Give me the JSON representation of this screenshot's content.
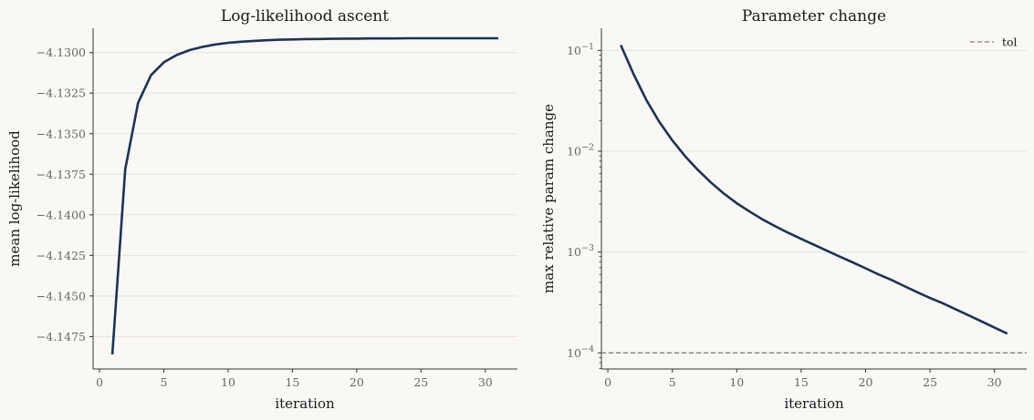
{
  "chart_data": [
    {
      "type": "line",
      "title": "Log-likelihood ascent",
      "xlabel": "iteration",
      "ylabel": "mean log-likelihood",
      "xlim": [
        -0.5,
        32.5
      ],
      "ylim": [
        -4.1495,
        -4.1285
      ],
      "xticks": [
        0,
        5,
        10,
        15,
        20,
        25,
        30
      ],
      "yticks": [
        -4.13,
        -4.1325,
        -4.135,
        -4.1375,
        -4.14,
        -4.1425,
        -4.145,
        -4.1475
      ],
      "xtick_labels": [
        "0",
        "5",
        "10",
        "15",
        "20",
        "25",
        "30"
      ],
      "ytick_labels": [
        "−4.1300",
        "−4.1325",
        "−4.1350",
        "−4.1375",
        "−4.1400",
        "−4.1425",
        "−4.1450",
        "−4.1475"
      ],
      "grid": "y",
      "legend": "none",
      "line_color": "#1c3258",
      "series": [
        {
          "x": [
            1,
            2,
            3,
            4,
            5,
            6,
            7,
            8,
            9,
            10,
            11,
            12,
            13,
            14,
            15,
            16,
            17,
            18,
            19,
            20,
            21,
            22,
            23,
            24,
            25,
            26,
            27,
            28,
            29,
            30,
            31
          ],
          "values": [
            -4.1486,
            -4.1372,
            -4.1331,
            -4.1314,
            -4.1306,
            -4.13015,
            -4.12985,
            -4.12965,
            -4.1295,
            -4.1294,
            -4.12933,
            -4.12928,
            -4.12924,
            -4.12921,
            -4.12919,
            -4.12917,
            -4.12916,
            -4.12915,
            -4.12914,
            -4.12914,
            -4.12913,
            -4.12913,
            -4.12913,
            -4.12912,
            -4.12912,
            -4.12912,
            -4.12912,
            -4.12912,
            -4.12912,
            -4.12912,
            -4.12912
          ]
        }
      ]
    },
    {
      "type": "line",
      "title": "Parameter change",
      "xlabel": "iteration",
      "ylabel": "max relative param change",
      "yscale": "log",
      "xlim": [
        -0.5,
        32.5
      ],
      "ylim_log10": [
        -4.16,
        -0.78
      ],
      "xticks": [
        0,
        5,
        10,
        15,
        20,
        25,
        30
      ],
      "yticks": [
        0.0001,
        0.001,
        0.01,
        0.1
      ],
      "xtick_labels": [
        "0",
        "5",
        "10",
        "15",
        "20",
        "25",
        "30"
      ],
      "ytick_labels": [
        {
          "base": "10",
          "exp": "−4",
          "value": 0.0001
        },
        {
          "base": "10",
          "exp": "−3",
          "value": 0.001
        },
        {
          "base": "10",
          "exp": "−2",
          "value": 0.01
        },
        {
          "base": "10",
          "exp": "−1",
          "value": 0.1
        }
      ],
      "grid": "y",
      "legend": "top-right",
      "line_color": "#1c3258",
      "ref_color": "#808080",
      "series": [
        {
          "x": [
            1,
            2,
            3,
            4,
            5,
            6,
            7,
            8,
            9,
            10,
            11,
            12,
            13,
            14,
            15,
            16,
            17,
            18,
            19,
            20,
            21,
            22,
            23,
            24,
            25,
            26,
            27,
            28,
            29,
            30,
            31
          ],
          "values": [
            0.113,
            0.058,
            0.032,
            0.0195,
            0.0128,
            0.0089,
            0.0065,
            0.0049,
            0.0038,
            0.00305,
            0.00252,
            0.00211,
            0.0018,
            0.00155,
            0.00135,
            0.00118,
            0.00103,
            0.0009,
            0.00079,
            0.00069,
            0.0006,
            0.00053,
            0.00046,
            0.0004,
            0.00035,
            0.00031,
            0.00027,
            0.000235,
            0.000205,
            0.000178,
            0.000155
          ]
        }
      ],
      "reference_line": {
        "name": "tol",
        "y": 0.0001,
        "style": "dashed"
      }
    }
  ]
}
